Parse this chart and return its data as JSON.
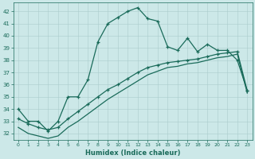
{
  "xlabel": "Humidex (Indice chaleur)",
  "bg_color": "#cce8e8",
  "grid_color": "#aacccc",
  "line_color": "#1a6b5a",
  "xlim": [
    -0.5,
    23.5
  ],
  "ylim": [
    31.5,
    42.7
  ],
  "yticks": [
    32,
    33,
    34,
    35,
    36,
    37,
    38,
    39,
    40,
    41,
    42
  ],
  "xticks": [
    0,
    1,
    2,
    3,
    4,
    5,
    6,
    7,
    8,
    9,
    10,
    11,
    12,
    13,
    14,
    15,
    16,
    17,
    18,
    19,
    20,
    21,
    22,
    23
  ],
  "series1_x": [
    0,
    1,
    2,
    3,
    4,
    5,
    6,
    7,
    8,
    9,
    10,
    11,
    12,
    13,
    14,
    15,
    16,
    17,
    18,
    19,
    20,
    21,
    22,
    23
  ],
  "series1_y": [
    34.0,
    33.0,
    33.0,
    32.2,
    33.0,
    35.0,
    35.0,
    36.4,
    39.5,
    41.0,
    41.5,
    42.0,
    42.3,
    41.4,
    41.2,
    39.1,
    38.8,
    39.8,
    38.7,
    39.3,
    38.8,
    38.8,
    38.0,
    35.5
  ],
  "series2_x": [
    0,
    1,
    2,
    3,
    4,
    5,
    6,
    7,
    8,
    9,
    10,
    11,
    12,
    13,
    14,
    15,
    16,
    17,
    18,
    19,
    20,
    21,
    22,
    23
  ],
  "series2_y": [
    33.2,
    32.8,
    32.5,
    32.3,
    32.5,
    33.2,
    33.8,
    34.4,
    35.0,
    35.6,
    36.0,
    36.5,
    37.0,
    37.4,
    37.6,
    37.8,
    37.9,
    38.0,
    38.1,
    38.3,
    38.5,
    38.6,
    38.7,
    35.5
  ],
  "series3_x": [
    0,
    1,
    2,
    3,
    4,
    5,
    6,
    7,
    8,
    9,
    10,
    11,
    12,
    13,
    14,
    15,
    16,
    17,
    18,
    19,
    20,
    21,
    22,
    23
  ],
  "series3_y": [
    32.5,
    32.0,
    31.8,
    31.6,
    31.8,
    32.5,
    33.0,
    33.6,
    34.2,
    34.8,
    35.3,
    35.8,
    36.3,
    36.8,
    37.1,
    37.4,
    37.5,
    37.7,
    37.8,
    38.0,
    38.2,
    38.3,
    38.5,
    35.3
  ]
}
